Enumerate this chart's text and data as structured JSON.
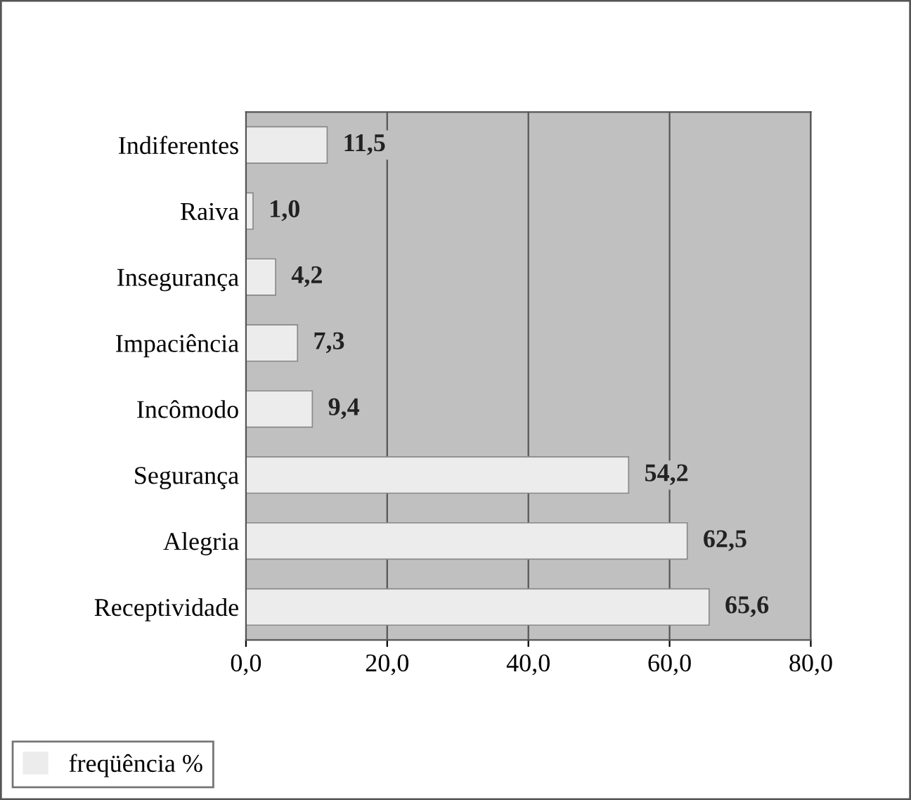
{
  "chart_data": {
    "type": "bar",
    "orientation": "horizontal",
    "categories": [
      "Indiferentes",
      "Raiva",
      "Insegurança",
      "Impaciência",
      "Incômodo",
      "Segurança",
      "Alegria",
      "Receptividade"
    ],
    "series": [
      {
        "name": "freqüência %",
        "color": "#ececec",
        "values": [
          11.5,
          1.0,
          4.2,
          7.3,
          9.4,
          54.2,
          62.5,
          65.6
        ]
      }
    ],
    "value_labels": [
      "11,5",
      "1,0",
      "4,2",
      "7,3",
      "9,4",
      "54,2",
      "62,5",
      "65,6"
    ],
    "xlim": [
      0,
      80
    ],
    "xticks": [
      {
        "value": 0,
        "label": "0,0"
      },
      {
        "value": 20,
        "label": "20,0"
      },
      {
        "value": 40,
        "label": "40,0"
      },
      {
        "value": 60,
        "label": "60,0"
      },
      {
        "value": 80,
        "label": "80,0"
      }
    ],
    "grid": "x",
    "legend": "bottom left"
  }
}
